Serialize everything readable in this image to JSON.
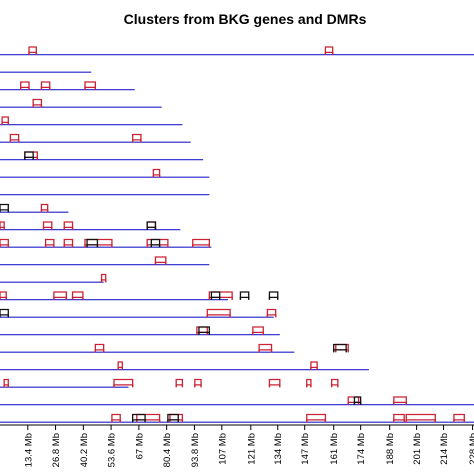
{
  "chart_data": {
    "type": "chromosome-cluster-map",
    "title": "Clusters from BKG genes and DMRs",
    "xlabel": "",
    "ylabel": "",
    "x_unit": "Mb",
    "tick_labels": [
      "13.4 Mb",
      "26.8 Mb",
      "40.2 Mb",
      "53.6 Mb",
      "67 Mb",
      "80.4 Mb",
      "93.8 Mb",
      "107 Mb",
      "121 Mb",
      "134 Mb",
      "147 Mb",
      "161 Mb",
      "174 Mb",
      "188 Mb",
      "201 Mb",
      "214 Mb",
      "228 Mb"
    ],
    "tick_values": [
      13.4,
      26.8,
      40.2,
      53.6,
      67,
      80.4,
      93.8,
      107,
      121,
      134,
      147,
      161,
      174,
      188,
      201,
      214,
      228
    ],
    "xlim": [
      0,
      235
    ],
    "grid": false,
    "legend": "none",
    "colors": {
      "chromosome": "#2222cc",
      "dmr_cluster": "#cc2233",
      "bkg_cluster": "#111111"
    },
    "chromosomes": [
      {
        "length": 235,
        "dmr": [
          [
            14,
            17.5
          ],
          [
            157,
            160.5
          ]
        ],
        "bkg": []
      },
      {
        "length": 44,
        "dmr": [],
        "bkg": []
      },
      {
        "length": 65,
        "dmr": [
          [
            10,
            14
          ],
          [
            20,
            24
          ],
          [
            41,
            46
          ]
        ],
        "bkg": []
      },
      {
        "length": 78,
        "dmr": [
          [
            16,
            20
          ]
        ],
        "bkg": []
      },
      {
        "length": 88,
        "dmr": [
          [
            1,
            4
          ]
        ],
        "bkg": []
      },
      {
        "length": 92,
        "dmr": [
          [
            5,
            9
          ],
          [
            64,
            68
          ]
        ],
        "bkg": []
      },
      {
        "length": 98,
        "dmr": [
          [
            12,
            18
          ]
        ],
        "bkg": [
          [
            12,
            16
          ]
        ]
      },
      {
        "length": 101,
        "dmr": [
          [
            74,
            77
          ]
        ],
        "bkg": []
      },
      {
        "length": 101,
        "dmr": [],
        "bkg": []
      },
      {
        "length": 33,
        "dmr": [
          [
            20,
            23
          ]
        ],
        "bkg": [
          [
            0,
            4
          ]
        ]
      },
      {
        "length": 87,
        "dmr": [
          [
            0,
            2
          ],
          [
            21,
            25
          ],
          [
            31,
            35
          ],
          [
            71,
            75
          ]
        ],
        "bkg": [
          [
            71,
            75
          ]
        ]
      },
      {
        "length": 102,
        "dmr": [
          [
            0,
            4
          ],
          [
            22,
            26
          ],
          [
            31,
            35
          ],
          [
            41,
            54
          ],
          [
            71,
            81
          ],
          [
            93,
            101
          ]
        ],
        "bkg": [
          [
            42,
            47
          ],
          [
            73,
            77
          ]
        ]
      },
      {
        "length": 101,
        "dmr": [
          [
            75,
            80
          ]
        ],
        "bkg": []
      },
      {
        "length": 50,
        "dmr": [
          [
            49,
            51
          ]
        ],
        "bkg": []
      },
      {
        "length": 110,
        "dmr": [
          [
            0,
            3
          ],
          [
            26,
            32
          ],
          [
            35,
            40
          ],
          [
            101,
            112
          ]
        ],
        "bkg": [
          [
            102,
            106
          ],
          [
            116,
            120
          ],
          [
            130,
            134
          ]
        ]
      },
      {
        "length": 132,
        "dmr": [
          [
            100,
            111
          ],
          [
            129,
            133
          ]
        ],
        "bkg": [
          [
            0,
            4
          ]
        ]
      },
      {
        "length": 135,
        "dmr": [
          [
            95,
            100
          ],
          [
            122,
            127
          ]
        ],
        "bkg": [
          [
            96,
            101
          ]
        ]
      },
      {
        "length": 142,
        "dmr": [
          [
            46,
            50
          ],
          [
            125,
            131
          ],
          [
            162,
            168
          ]
        ],
        "bkg": [
          [
            161,
            167
          ]
        ]
      },
      {
        "length": 178,
        "dmr": [
          [
            57,
            59
          ],
          [
            150,
            153
          ]
        ],
        "bkg": []
      },
      {
        "length": 62,
        "dmr": [
          [
            2,
            4
          ],
          [
            55,
            64
          ],
          [
            85,
            88
          ],
          [
            94,
            97
          ],
          [
            130,
            135
          ],
          [
            148,
            150
          ],
          [
            160,
            163
          ]
        ],
        "bkg": []
      },
      {
        "length": 235,
        "dmr": [
          [
            168,
            173
          ],
          [
            190,
            196
          ]
        ],
        "bkg": [
          [
            171,
            174
          ]
        ]
      },
      {
        "length": 235,
        "dmr": [
          [
            54,
            58
          ],
          [
            66,
            77
          ],
          [
            82,
            88
          ],
          [
            148,
            157
          ],
          [
            190,
            195
          ],
          [
            196,
            210
          ],
          [
            219,
            224
          ]
        ],
        "bkg": [
          [
            64,
            70
          ],
          [
            81,
            86
          ]
        ]
      }
    ]
  }
}
